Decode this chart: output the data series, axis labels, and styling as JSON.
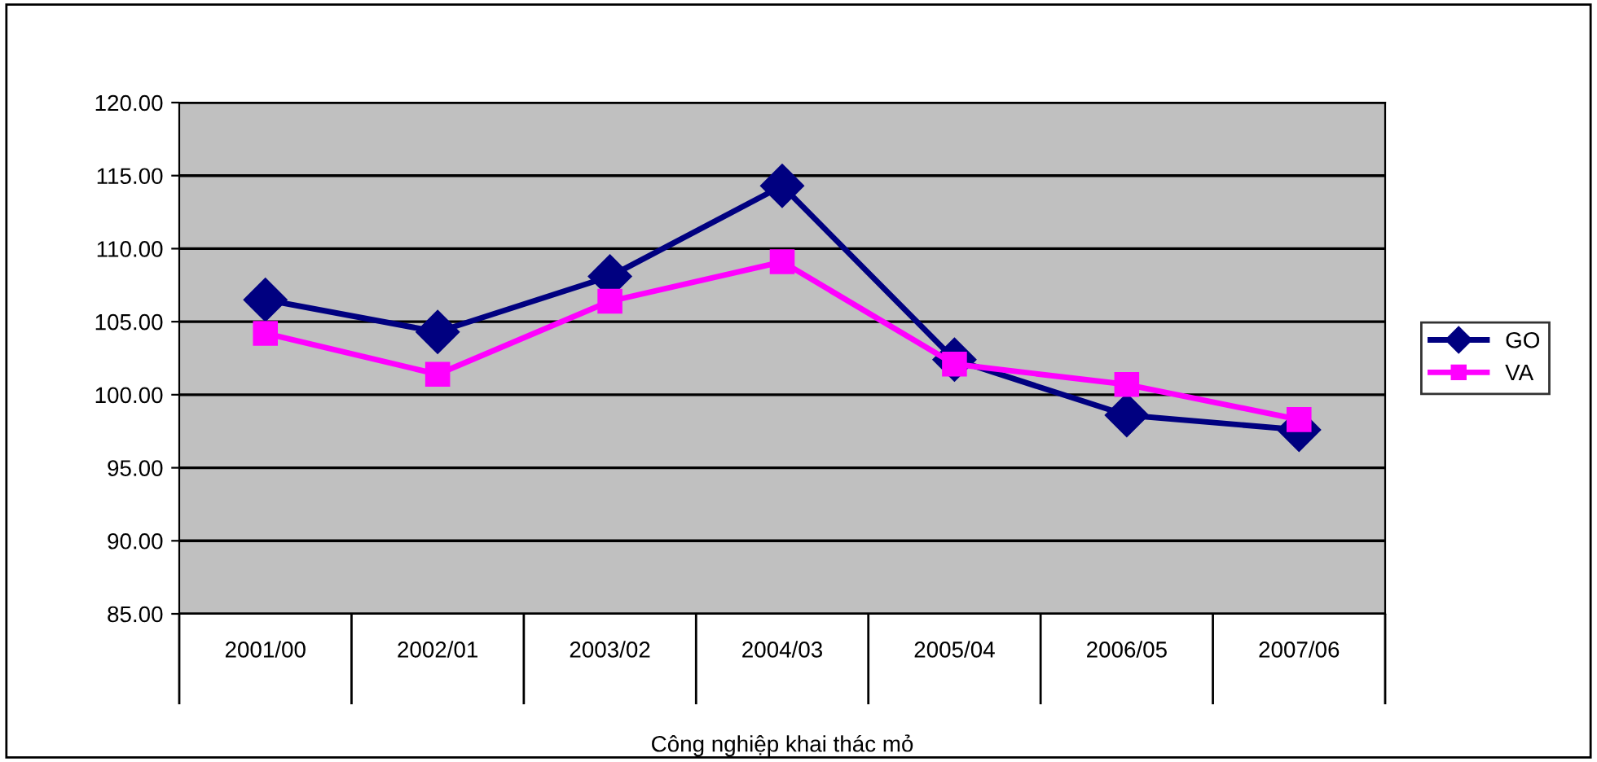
{
  "chart_data": {
    "type": "line",
    "xlabel": "Công nghiệp khai thác mỏ",
    "categories": [
      "2001/00",
      "2002/01",
      "2003/02",
      "2004/03",
      "2005/04",
      "2006/05",
      "2007/06"
    ],
    "series": [
      {
        "name": "GO",
        "color": "#000080",
        "marker": "diamond",
        "values": [
          106.5,
          104.3,
          108.1,
          114.3,
          102.4,
          98.6,
          97.6
        ]
      },
      {
        "name": "VA",
        "color": "#ff00ff",
        "marker": "square",
        "values": [
          104.2,
          101.4,
          106.4,
          109.1,
          102.1,
          100.7,
          98.3
        ]
      }
    ],
    "ylim": [
      85,
      120
    ],
    "yticks": [
      {
        "value": 85,
        "label": "85.00"
      },
      {
        "value": 90,
        "label": "90.00"
      },
      {
        "value": 95,
        "label": "95.00"
      },
      {
        "value": 100,
        "label": "100.00"
      },
      {
        "value": 105,
        "label": "105.00"
      },
      {
        "value": 110,
        "label": "110.00"
      },
      {
        "value": 115,
        "label": "115.00"
      },
      {
        "value": 120,
        "label": "120.00"
      }
    ],
    "grid": "y",
    "legend": "right"
  }
}
